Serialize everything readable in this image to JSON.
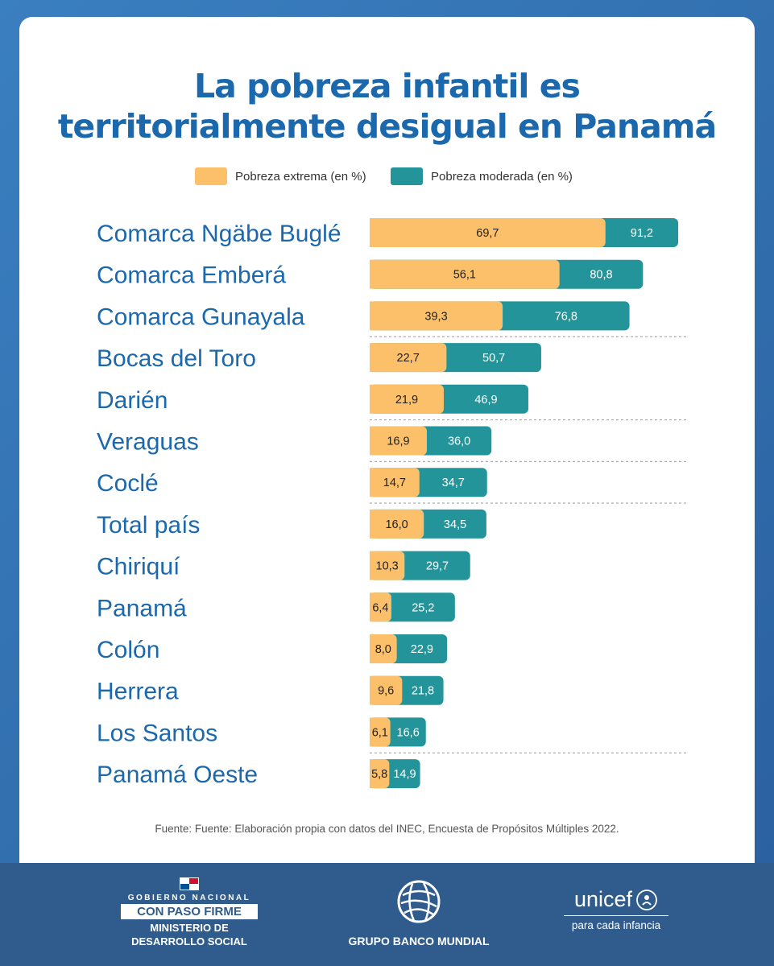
{
  "title_lines": [
    "La pobreza infantil es",
    "territorialmente desigual en Panamá"
  ],
  "legend": [
    {
      "label": "Pobreza extrema (en %)",
      "color": "#fcc06a"
    },
    {
      "label": "Pobreza moderada (en %)",
      "color": "#23959a"
    }
  ],
  "chart_data": {
    "type": "bar",
    "orientation": "horizontal",
    "stacked": "overlay",
    "title": "La pobreza infantil es territorialmente desigual en Panamá",
    "categories": [
      "Comarca Ngäbe Buglé",
      "Comarca Emberá",
      "Comarca Gunayala",
      "Bocas del Toro",
      "Darién",
      "Veraguas",
      "Coclé",
      "Total país",
      "Chiriquí",
      "Panamá",
      "Colón",
      "Herrera",
      "Los Santos",
      "Panamá Oeste"
    ],
    "series": [
      {
        "name": "Pobreza extrema (en %)",
        "color": "#fcc06a",
        "values": [
          69.7,
          56.1,
          39.3,
          22.7,
          21.9,
          16.9,
          14.7,
          16.0,
          10.3,
          6.4,
          8.0,
          9.6,
          6.1,
          5.8
        ],
        "labels": [
          "69,7",
          "56,1",
          "39,3",
          "22,7",
          "21,9",
          "16,9",
          "14,7",
          "16,0",
          "10,3",
          "6,4",
          "8,0",
          "9,6",
          "6,1",
          "5,8"
        ]
      },
      {
        "name": "Pobreza moderada (en %)",
        "color": "#23959a",
        "values": [
          91.2,
          80.8,
          76.8,
          50.7,
          46.9,
          36.0,
          34.7,
          34.5,
          29.7,
          25.2,
          22.9,
          21.8,
          16.6,
          14.9
        ],
        "labels": [
          "91,2",
          "80,8",
          "76,8",
          "50,7",
          "46,9",
          "36,0",
          "34,7",
          "34,5",
          "29,7",
          "25,2",
          "22,9",
          "21,8",
          "16,6",
          "14,9"
        ]
      }
    ],
    "xlim": [
      0,
      100
    ],
    "grid": false,
    "legend_position": "top"
  },
  "source": "Fuente: Fuente: Elaboración propia con datos del INEC, Encuesta de Propósitos Múltiples 2022.",
  "footer": {
    "gov_line1": "GOBIERNO NACIONAL",
    "gov_line2": "CON PASO FIRME",
    "gov_line3": "MINISTERIO DE",
    "gov_line4": "DESARROLLO SOCIAL",
    "wb_name": "GRUPO BANCO MUNDIAL",
    "unicef_name": "unicef",
    "unicef_tagline": "para cada infancia"
  }
}
